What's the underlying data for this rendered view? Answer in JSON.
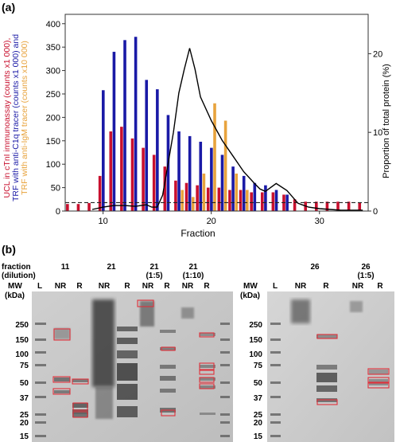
{
  "panel_a_label": "(a)",
  "panel_b_label": "(b)",
  "chart_data": {
    "type": "bar",
    "xlabel": "Fraction",
    "x_ticks": [
      10,
      20,
      30
    ],
    "xlim": [
      6.5,
      34.5
    ],
    "left_axis": {
      "label_lines": [
        {
          "text": "UCL in cTnI immunoassay (counts x1 000),",
          "color": "#c8102e"
        },
        {
          "text": "TRF with anti-C1q tracer (counts x1 000) and",
          "color": "#1a1aa6"
        },
        {
          "text": "TRF with anti-IgM tracer (counts x10 000)",
          "color": "#e8a33d"
        }
      ],
      "ylim": [
        0,
        420
      ],
      "ticks": [
        0,
        50,
        100,
        150,
        200,
        250,
        300,
        350,
        400
      ]
    },
    "right_axis": {
      "label": "Proportion of total protein (%)",
      "ylim": [
        0,
        25
      ],
      "ticks": [
        0,
        10,
        20
      ]
    },
    "baseline_dashed": 18,
    "series": [
      {
        "kind": "bar",
        "color": "#c8102e",
        "x": [
          7,
          8,
          9,
          10,
          11,
          12,
          13,
          14,
          15,
          16,
          17,
          18,
          19,
          20,
          21,
          22,
          23,
          24,
          25,
          26,
          27,
          28,
          29,
          30,
          31,
          32,
          33,
          34
        ],
        "values": [
          15,
          15,
          17,
          75,
          170,
          180,
          155,
          135,
          120,
          95,
          65,
          60,
          55,
          50,
          50,
          45,
          45,
          40,
          40,
          40,
          35,
          25,
          20,
          20,
          20,
          20,
          20,
          18
        ]
      },
      {
        "kind": "bar",
        "color": "#1a1aa6",
        "x": [
          10,
          11,
          12,
          13,
          14,
          15,
          16,
          17,
          18,
          19,
          20,
          21,
          22,
          23,
          24,
          25,
          26,
          27
        ],
        "values": [
          258,
          340,
          365,
          372,
          280,
          260,
          205,
          170,
          160,
          148,
          135,
          120,
          95,
          75,
          60,
          55,
          45,
          35
        ]
      },
      {
        "kind": "bar",
        "color": "#e8a33d",
        "x": [
          17,
          18,
          19,
          20,
          21,
          22,
          23
        ],
        "values": [
          45,
          30,
          80,
          230,
          193,
          80,
          45
        ]
      },
      {
        "kind": "line",
        "axis": "right",
        "color": "#000000",
        "x": [
          9,
          10,
          11,
          12,
          13,
          14,
          14.5,
          15,
          15.5,
          16,
          16.5,
          17,
          17.5,
          18,
          18.5,
          19,
          20,
          21,
          22,
          23,
          24,
          24.5,
          25,
          26,
          27,
          27.5,
          28,
          29,
          30,
          31,
          32,
          33,
          34
        ],
        "y": [
          0.2,
          0.5,
          0.7,
          0.7,
          0.6,
          0.8,
          0.5,
          0.5,
          2,
          6,
          10,
          15,
          18,
          20.7,
          18,
          14.5,
          11.5,
          9,
          7,
          5,
          3.5,
          2.8,
          2.5,
          3.5,
          2.6,
          1.8,
          1.0,
          0.5,
          0.3,
          0.2,
          0.1,
          0.1,
          0.1
        ]
      }
    ]
  },
  "gel": {
    "left_header": [
      "fraction",
      "(dilution)",
      "MW",
      "(kDa)"
    ],
    "right_header": [
      "MW",
      "(kDa)"
    ],
    "fraction_labels": [
      {
        "text": "11",
        "sub": ""
      },
      {
        "text": "21",
        "sub": ""
      },
      {
        "text": "21",
        "sub": "(1:5)"
      },
      {
        "text": "21",
        "sub": "(1:10)"
      },
      {
        "text": "26",
        "sub": ""
      },
      {
        "text": "26",
        "sub": "(1:5)"
      }
    ],
    "lane_labels_left": [
      "L",
      "NR",
      "R",
      "NR",
      "R",
      "NR",
      "R",
      "NR",
      "R"
    ],
    "lane_labels_right": [
      "L",
      "NR",
      "R",
      "NR",
      "R"
    ],
    "mw_markers": [
      "250",
      "150",
      "100",
      "75",
      "50",
      "37",
      "25",
      "20",
      "15"
    ],
    "highlight_color": "#e0303a"
  }
}
